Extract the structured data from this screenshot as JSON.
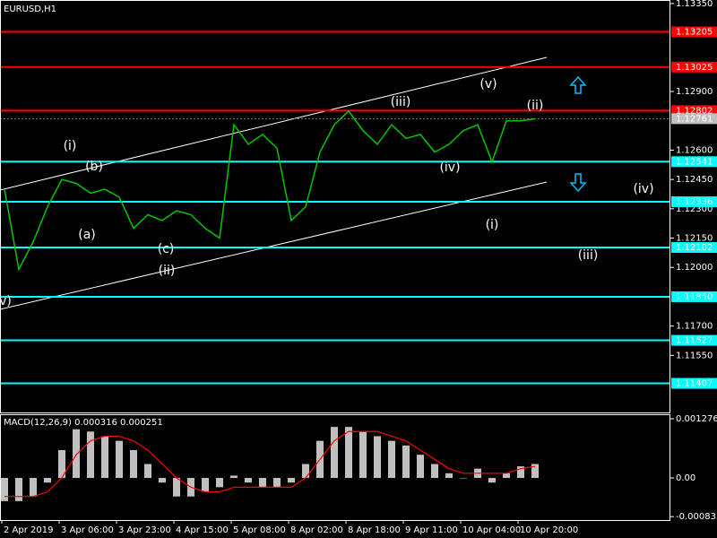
{
  "chart_data": [
    {
      "type": "line",
      "title": "EURUSD,H1",
      "color": "#00c800",
      "values": [
        1.124,
        1.1199,
        1.1213,
        1.1231,
        1.1245,
        1.1243,
        1.1238,
        1.124,
        1.1236,
        1.122,
        1.1227,
        1.1224,
        1.1229,
        1.1227,
        1.122,
        1.1215,
        1.1273,
        1.1263,
        1.1268,
        1.1261,
        1.1224,
        1.1231,
        1.1259,
        1.1273,
        1.128,
        1.127,
        1.1263,
        1.1273,
        1.1266,
        1.1268,
        1.1259,
        1.1263,
        1.127,
        1.1273,
        1.1254,
        1.1275,
        1.1275,
        1.1276
      ],
      "ylim": [
        1.11258,
        1.13368
      ],
      "yticks": [
        {
          "value": 1.1335,
          "label": "1.13350"
        },
        {
          "value": 1.129,
          "label": "1.12900"
        },
        {
          "value": 1.126,
          "label": "1.12600"
        },
        {
          "value": 1.1245,
          "label": "1.12450"
        },
        {
          "value": 1.123,
          "label": "1.12300"
        },
        {
          "value": 1.1215,
          "label": "1.12150"
        },
        {
          "value": 1.12,
          "label": "1.12000"
        },
        {
          "value": 1.117,
          "label": "1.11700"
        },
        {
          "value": 1.1155,
          "label": "1.11550"
        }
      ],
      "levels": [
        {
          "value": 1.13205,
          "label": "1.13205",
          "color": "#ff0000"
        },
        {
          "value": 1.13025,
          "label": "1.13025",
          "color": "#ff0000"
        },
        {
          "value": 1.12802,
          "label": "1.12802",
          "color": "#ff0000"
        },
        {
          "value": 1.12541,
          "label": "1.12541",
          "color": "#00ffff"
        },
        {
          "value": 1.12336,
          "label": "1.12336",
          "color": "#00ffff"
        },
        {
          "value": 1.12102,
          "label": "1.12102",
          "color": "#00ffff"
        },
        {
          "value": 1.1185,
          "label": "1.11850",
          "color": "#00ffff"
        },
        {
          "value": 1.11627,
          "label": "1.11627",
          "color": "#00ffff"
        },
        {
          "value": 1.11407,
          "label": "1.11407",
          "color": "#00ffff"
        }
      ],
      "last_price": 1.12761,
      "annotations": [
        {
          "text": "(i)",
          "color": "#ffffff"
        },
        {
          "text": "(b)",
          "color": "#ffd700"
        },
        {
          "text": "(a)",
          "color": "#ffd700"
        },
        {
          "text": "(c)",
          "color": "#ffd700"
        },
        {
          "text": "(ii)",
          "color": "#ffffff"
        },
        {
          "text": "(iii)",
          "color": "#ffffff"
        },
        {
          "text": "(iv)",
          "color": "#ffffff"
        },
        {
          "text": "(v)",
          "color": "#ffffff"
        },
        {
          "text": "(ii)",
          "color": "#ffffff"
        },
        {
          "text": "(i)",
          "color": "#ffffff"
        },
        {
          "text": "(iv)",
          "color": "#ffffff"
        },
        {
          "text": "(iii)",
          "color": "#ffffff"
        },
        {
          "text": "v)",
          "color": "#ffffff"
        }
      ]
    },
    {
      "type": "bar",
      "title": "MACD(12,26,9) 0.000316 0.000251",
      "color": "#c0c0c0",
      "categories": [
        "2 Apr 2019",
        null,
        null,
        null,
        "3 Apr 06:00",
        null,
        null,
        null,
        "3 Apr 23:00",
        null,
        null,
        null,
        "4 Apr 15:00",
        null,
        null,
        null,
        "5 Apr 08:00",
        null,
        null,
        null,
        "8 Apr 02:00",
        null,
        null,
        null,
        "8 Apr 18:00",
        null,
        null,
        null,
        "9 Apr 11:00",
        null,
        null,
        null,
        "10 Apr 04:00",
        null,
        null,
        null,
        "10 Apr 20:00",
        null
      ],
      "values": [
        -0.0005,
        -0.0005,
        -0.0004,
        -0.0001,
        0.0006,
        0.00105,
        0.001,
        0.0009,
        0.0008,
        0.0006,
        0.0003,
        -0.0001,
        -0.0004,
        -0.0004,
        -0.0003,
        -0.0002,
        5e-05,
        -0.0001,
        -0.0002,
        -0.0002,
        -0.0001,
        0.0003,
        0.0008,
        0.0011,
        0.0011,
        0.001,
        0.0009,
        0.0008,
        0.0007,
        0.0005,
        0.0003,
        0.0001,
        0,
        0.0002,
        -0.0001,
        0.0001,
        0.00025,
        0.0003
      ],
      "signal": {
        "color": "#ff0000",
        "values": [
          -0.0004,
          -0.0004,
          -0.0004,
          -0.0003,
          0,
          0.0005,
          0.0008,
          0.0009,
          0.0009,
          0.0008,
          0.0006,
          0.0003,
          0,
          -0.0002,
          -0.0003,
          -0.0003,
          -0.0002,
          -0.0002,
          -0.0002,
          -0.0002,
          -0.0002,
          0,
          0.0004,
          0.0008,
          0.001,
          0.001,
          0.001,
          0.0009,
          0.0008,
          0.0006,
          0.0004,
          0.0002,
          0.0001,
          0.0001,
          0.0001,
          0.0001,
          0.0002,
          0.00025
        ]
      },
      "ylim": [
        -0.000909,
        0.001373
      ],
      "yticks": [
        0.001276,
        {
          "value": 0,
          "label": "0.00"
        },
        -0.000835
      ]
    }
  ]
}
